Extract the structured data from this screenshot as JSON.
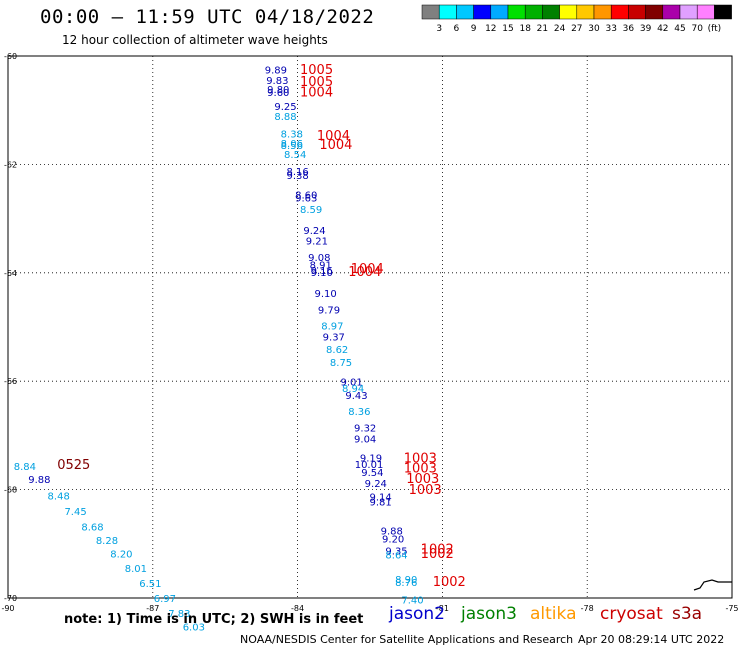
{
  "header": {
    "title": "00:00 – 11:59 UTC 04/18/2022",
    "subtitle": "12 hour collection of altimeter wave heights"
  },
  "colorbar": {
    "colors": [
      "#808080",
      "#00ffff",
      "#00c8ff",
      "#0000ff",
      "#00aaff",
      "#00e000",
      "#00b000",
      "#008000",
      "#ffff00",
      "#ffc800",
      "#ff9600",
      "#ff0000",
      "#c80000",
      "#800000",
      "#aa00aa",
      "#e0a0ff",
      "#ff80ff",
      "#000000"
    ],
    "labels": [
      "3",
      "6",
      "9",
      "12",
      "15",
      "18",
      "21",
      "24",
      "27",
      "30",
      "33",
      "36",
      "39",
      "42",
      "45",
      "70",
      "(ft)"
    ]
  },
  "footer": {
    "note": "note:  1) Time is in UTC;  2) SWH is in feet",
    "legend": [
      {
        "label": "jason2",
        "color": "#0000cc"
      },
      {
        "label": "jason3",
        "color": "#008000"
      },
      {
        "label": "altika",
        "color": "#ff9900"
      },
      {
        "label": "cryosat",
        "color": "#cc0000"
      },
      {
        "label": "s3a",
        "color": "#990000"
      }
    ],
    "credit": "NOAA/NESDIS Center for Satellite Applications and Research",
    "timestamp": "Apr 20 08:29:14 UTC 2022"
  },
  "chart_data": {
    "type": "scatter",
    "xlim": [
      -90,
      -75
    ],
    "ylim": [
      -70,
      -60
    ],
    "x_ticks": [
      "-90",
      "-87",
      "-84",
      "-81",
      "-78",
      "-75"
    ],
    "y_ticks": [
      "-60",
      "-62",
      "-64",
      "-66",
      "-68",
      "-70"
    ],
    "grid": true,
    "points": [
      {
        "lon": -84.45,
        "lat": -60.32,
        "label": "9.89",
        "color": "#0000b0"
      },
      {
        "lon": -84.42,
        "lat": -60.52,
        "label": "9.83",
        "color": "#0000b0"
      },
      {
        "lon": -84.4,
        "lat": -60.68,
        "label": "9.80",
        "color": "#0000b0"
      },
      {
        "lon": -84.4,
        "lat": -60.74,
        "label": "9.60",
        "color": "#0000b0"
      },
      {
        "lon": -84.25,
        "lat": -61.0,
        "label": "9.25",
        "color": "#0000b0"
      },
      {
        "lon": -84.25,
        "lat": -61.18,
        "label": "8.88",
        "color": "#00a0e0"
      },
      {
        "lon": -84.12,
        "lat": -61.5,
        "label": "8.38",
        "color": "#00a0e0"
      },
      {
        "lon": -84.12,
        "lat": -61.68,
        "label": "8.06",
        "color": "#00a0e0"
      },
      {
        "lon": -84.12,
        "lat": -61.72,
        "label": "8.56",
        "color": "#00a0e0"
      },
      {
        "lon": -84.05,
        "lat": -61.88,
        "label": "8.54",
        "color": "#00a0e0"
      },
      {
        "lon": -84.0,
        "lat": -62.2,
        "label": "8.16",
        "color": "#0000b0"
      },
      {
        "lon": -84.0,
        "lat": -62.27,
        "label": "9.38",
        "color": "#0000b0"
      },
      {
        "lon": -83.82,
        "lat": -62.63,
        "label": "8.60",
        "color": "#0000b0"
      },
      {
        "lon": -83.82,
        "lat": -62.68,
        "label": "9.63",
        "color": "#0000b0"
      },
      {
        "lon": -83.72,
        "lat": -62.9,
        "label": "8.59",
        "color": "#00a0e0"
      },
      {
        "lon": -83.65,
        "lat": -63.28,
        "label": "9.24",
        "color": "#0000b0"
      },
      {
        "lon": -83.6,
        "lat": -63.48,
        "label": "9.21",
        "color": "#0000b0"
      },
      {
        "lon": -83.55,
        "lat": -63.78,
        "label": "9.08",
        "color": "#0000b0"
      },
      {
        "lon": -83.52,
        "lat": -63.92,
        "label": "8.91",
        "color": "#0000b0"
      },
      {
        "lon": -83.5,
        "lat": -64.02,
        "label": "9.16",
        "color": "#0000b0"
      },
      {
        "lon": -83.5,
        "lat": -64.06,
        "label": "9.10",
        "color": "#0000b0"
      },
      {
        "lon": -83.42,
        "lat": -64.45,
        "label": "9.10",
        "color": "#0000b0"
      },
      {
        "lon": -83.35,
        "lat": -64.75,
        "label": "9.79",
        "color": "#0000b0"
      },
      {
        "lon": -83.28,
        "lat": -65.05,
        "label": "8.97",
        "color": "#00a0e0"
      },
      {
        "lon": -83.25,
        "lat": -65.25,
        "label": "9.37",
        "color": "#0000b0"
      },
      {
        "lon": -83.18,
        "lat": -65.48,
        "label": "8.62",
        "color": "#00a0e0"
      },
      {
        "lon": -83.1,
        "lat": -65.72,
        "label": "8.75",
        "color": "#00a0e0"
      },
      {
        "lon": -82.88,
        "lat": -66.08,
        "label": "9.01",
        "color": "#0000b0"
      },
      {
        "lon": -82.85,
        "lat": -66.2,
        "label": "8.94",
        "color": "#00a0e0"
      },
      {
        "lon": -82.78,
        "lat": -66.33,
        "label": "9.43",
        "color": "#0000b0"
      },
      {
        "lon": -82.72,
        "lat": -66.62,
        "label": "8.36",
        "color": "#00a0e0"
      },
      {
        "lon": -82.6,
        "lat": -66.93,
        "label": "9.32",
        "color": "#0000b0"
      },
      {
        "lon": -82.6,
        "lat": -67.13,
        "label": "9.04",
        "color": "#0000b0"
      },
      {
        "lon": -82.48,
        "lat": -67.48,
        "label": "9.19",
        "color": "#0000b0"
      },
      {
        "lon": -82.52,
        "lat": -67.6,
        "label": "10.01",
        "color": "#0000b0"
      },
      {
        "lon": -82.45,
        "lat": -67.75,
        "label": "9.54",
        "color": "#0000b0"
      },
      {
        "lon": -82.38,
        "lat": -67.95,
        "label": "9.24",
        "color": "#0000b0"
      },
      {
        "lon": -82.28,
        "lat": -68.2,
        "label": "9.14",
        "color": "#0000b0"
      },
      {
        "lon": -82.28,
        "lat": -68.29,
        "label": "9.81",
        "color": "#0000b0"
      },
      {
        "lon": -82.05,
        "lat": -68.83,
        "label": "9.88",
        "color": "#0000b0"
      },
      {
        "lon": -82.02,
        "lat": -68.98,
        "label": "9.20",
        "color": "#0000b0"
      },
      {
        "lon": -81.95,
        "lat": -69.2,
        "label": "9.35",
        "color": "#0000b0"
      },
      {
        "lon": -81.95,
        "lat": -69.27,
        "label": "8.64",
        "color": "#00a0e0"
      },
      {
        "lon": -81.75,
        "lat": -69.72,
        "label": "8.90",
        "color": "#00a0e0"
      },
      {
        "lon": -81.75,
        "lat": -69.78,
        "label": "8.76",
        "color": "#00a0e0"
      },
      {
        "lon": -81.62,
        "lat": -70.1,
        "label": "7.40",
        "color": "#00a0e0"
      },
      {
        "lon": -89.65,
        "lat": -67.64,
        "label": "8.84",
        "color": "#00a0e0"
      },
      {
        "lon": -89.35,
        "lat": -67.88,
        "label": "9.88",
        "color": "#0000b0"
      },
      {
        "lon": -88.95,
        "lat": -68.18,
        "label": "8.48",
        "color": "#00a0e0"
      },
      {
        "lon": -88.6,
        "lat": -68.47,
        "label": "7.45",
        "color": "#00a0e0"
      },
      {
        "lon": -88.25,
        "lat": -68.75,
        "label": "8.68",
        "color": "#00a0e0"
      },
      {
        "lon": -87.95,
        "lat": -69.0,
        "label": "8.28",
        "color": "#00a0e0"
      },
      {
        "lon": -87.65,
        "lat": -69.25,
        "label": "8.20",
        "color": "#00a0e0"
      },
      {
        "lon": -87.35,
        "lat": -69.52,
        "label": "8.01",
        "color": "#00a0e0"
      },
      {
        "lon": -87.05,
        "lat": -69.8,
        "label": "6.51",
        "color": "#00a0e0"
      },
      {
        "lon": -86.75,
        "lat": -70.07,
        "label": "6.97",
        "color": "#00a0e0"
      },
      {
        "lon": -86.45,
        "lat": -70.35,
        "label": "7.83",
        "color": "#00a0e0"
      },
      {
        "lon": -86.15,
        "lat": -70.6,
        "label": "6.03",
        "color": "#00a0e0"
      }
    ],
    "track_labels": [
      {
        "lon": -83.95,
        "lat": -60.33,
        "label": "1005",
        "color": "#e00000"
      },
      {
        "lon": -83.95,
        "lat": -60.55,
        "label": "1005",
        "color": "#e00000"
      },
      {
        "lon": -83.95,
        "lat": -60.75,
        "label": "1004",
        "color": "#e00000"
      },
      {
        "lon": -83.6,
        "lat": -61.55,
        "label": "1004",
        "color": "#e00000"
      },
      {
        "lon": -83.55,
        "lat": -61.72,
        "label": "1004",
        "color": "#e00000"
      },
      {
        "lon": -82.9,
        "lat": -64.0,
        "label": "1004",
        "color": "#e00000"
      },
      {
        "lon": -82.95,
        "lat": -64.06,
        "label": "1004",
        "color": "#e00000"
      },
      {
        "lon": -81.8,
        "lat": -67.5,
        "label": "1003",
        "color": "#e00000"
      },
      {
        "lon": -81.8,
        "lat": -67.68,
        "label": "1003",
        "color": "#e00000"
      },
      {
        "lon": -81.75,
        "lat": -67.88,
        "label": "1003",
        "color": "#e00000"
      },
      {
        "lon": -81.7,
        "lat": -68.08,
        "label": "1003",
        "color": "#e00000"
      },
      {
        "lon": -81.45,
        "lat": -69.18,
        "label": "1002",
        "color": "#e00000"
      },
      {
        "lon": -81.45,
        "lat": -69.26,
        "label": "1002",
        "color": "#e00000"
      },
      {
        "lon": -81.2,
        "lat": -69.78,
        "label": "1002",
        "color": "#e00000"
      },
      {
        "lon": -88.98,
        "lat": -67.62,
        "label": "0525",
        "color": "#800000"
      }
    ]
  }
}
